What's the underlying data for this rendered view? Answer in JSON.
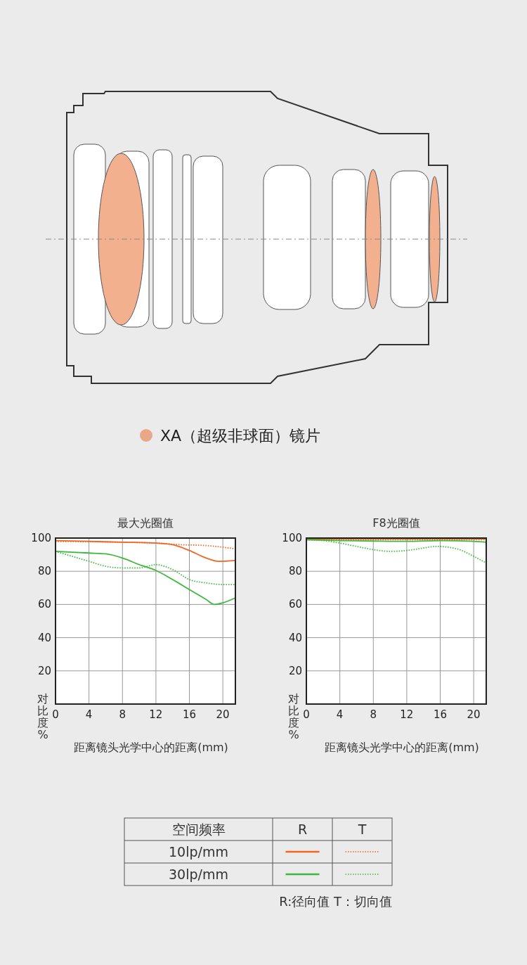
{
  "chart_data": [
    {
      "type": "line",
      "title": "最大光圈值",
      "xlabel": "距离镜头光学中心的距离(mm)",
      "ylabel": "对比度%",
      "legend_title": "空间频率",
      "grid": true,
      "xlim": [
        0,
        21.5
      ],
      "xticks": [
        0,
        4,
        8,
        12,
        16,
        20
      ],
      "ylim": [
        0,
        100
      ],
      "yticks": [
        20,
        40,
        60,
        80,
        100
      ],
      "annotations": [
        "XA（超级非球面）镜片",
        "R",
        "T",
        "10lp/mm",
        "30lp/mm",
        "R:径向值 T：切向值"
      ],
      "series": [
        {
          "color": "#f26522",
          "line_style": "solid",
          "x": [
            0,
            4,
            8,
            12,
            14,
            16,
            18,
            19.5,
            21.5
          ],
          "values": [
            98.5,
            98,
            97.5,
            97,
            96,
            92.5,
            88,
            86,
            86.5
          ]
        },
        {
          "color": "#f26522",
          "line_style": "dotted",
          "x": [
            0,
            8,
            12,
            15,
            18,
            20,
            21.5
          ],
          "values": [
            98,
            97.5,
            97,
            96,
            95.5,
            94.5,
            93.5
          ]
        },
        {
          "color": "#3cb93c",
          "line_style": "solid",
          "x": [
            0,
            4,
            6,
            8,
            10,
            12,
            14,
            16,
            18,
            19,
            20,
            21.5
          ],
          "values": [
            92,
            91,
            90.5,
            88,
            84,
            80.5,
            75,
            69,
            63,
            60,
            61,
            64
          ]
        },
        {
          "color": "#3cb93c",
          "line_style": "dotted",
          "x": [
            0,
            2,
            4,
            6,
            8,
            10,
            12,
            14,
            16,
            18,
            20,
            21.5
          ],
          "values": [
            92,
            89,
            86,
            83,
            82,
            82,
            84,
            81,
            75,
            73,
            72,
            72
          ]
        }
      ]
    },
    {
      "type": "line",
      "title": "F8光圈值",
      "xlabel": "距离镜头光学中心的距离(mm)",
      "ylabel": "对比度%",
      "grid": true,
      "xlim": [
        0,
        21.5
      ],
      "xticks": [
        0,
        4,
        8,
        12,
        16,
        20
      ],
      "ylim": [
        0,
        100
      ],
      "yticks": [
        20,
        40,
        60,
        80,
        100
      ],
      "series": [
        {
          "color": "#f26522",
          "line_style": "solid",
          "x": [
            0,
            8,
            16,
            21.5
          ],
          "values": [
            99.5,
            99.5,
            99.5,
            99.5
          ]
        },
        {
          "color": "#f26522",
          "line_style": "dotted",
          "x": [
            0,
            8,
            16,
            21.5
          ],
          "values": [
            99,
            99,
            99,
            99
          ]
        },
        {
          "color": "#3cb93c",
          "line_style": "solid",
          "x": [
            0,
            4,
            8,
            12,
            16,
            20,
            21.5
          ],
          "values": [
            99,
            98.5,
            98.2,
            98,
            98.5,
            98,
            97.5
          ]
        },
        {
          "color": "#3cb93c",
          "line_style": "dotted",
          "x": [
            0,
            2,
            4,
            6,
            8,
            10,
            12,
            14,
            15.5,
            18,
            20,
            21.5
          ],
          "values": [
            99,
            98.5,
            97,
            95,
            93,
            92,
            92.5,
            94,
            95,
            93.5,
            89,
            85
          ]
        }
      ]
    }
  ]
}
